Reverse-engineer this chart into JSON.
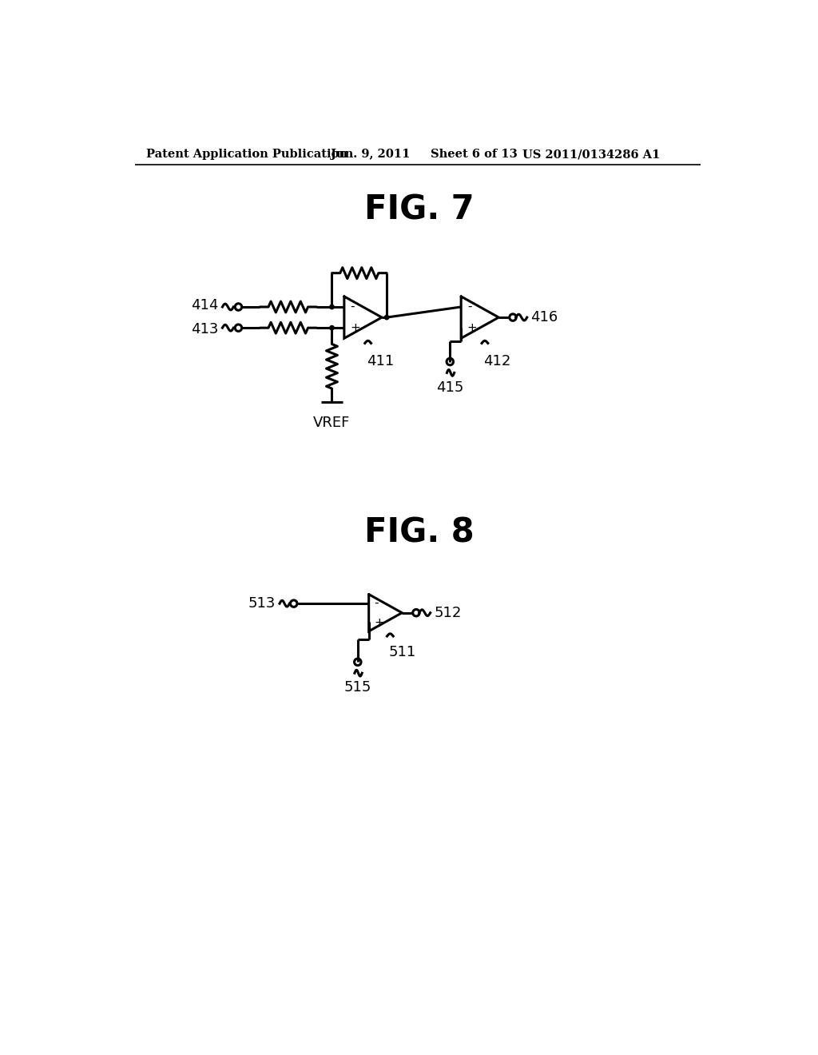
{
  "bg_color": "#ffffff",
  "line_color": "#000000",
  "header_text": "Patent Application Publication",
  "header_date": "Jun. 9, 2011",
  "header_sheet": "Sheet 6 of 13",
  "header_patent": "US 2011/0134286 A1",
  "fig7_title": "FIG. 7",
  "fig8_title": "FIG. 8",
  "label_414": "414",
  "label_413": "413",
  "label_411": "411",
  "label_412": "412",
  "label_416": "416",
  "label_415": "415",
  "label_vref": "VREF",
  "label_513": "513",
  "label_511": "511",
  "label_512": "512",
  "label_515": "515"
}
